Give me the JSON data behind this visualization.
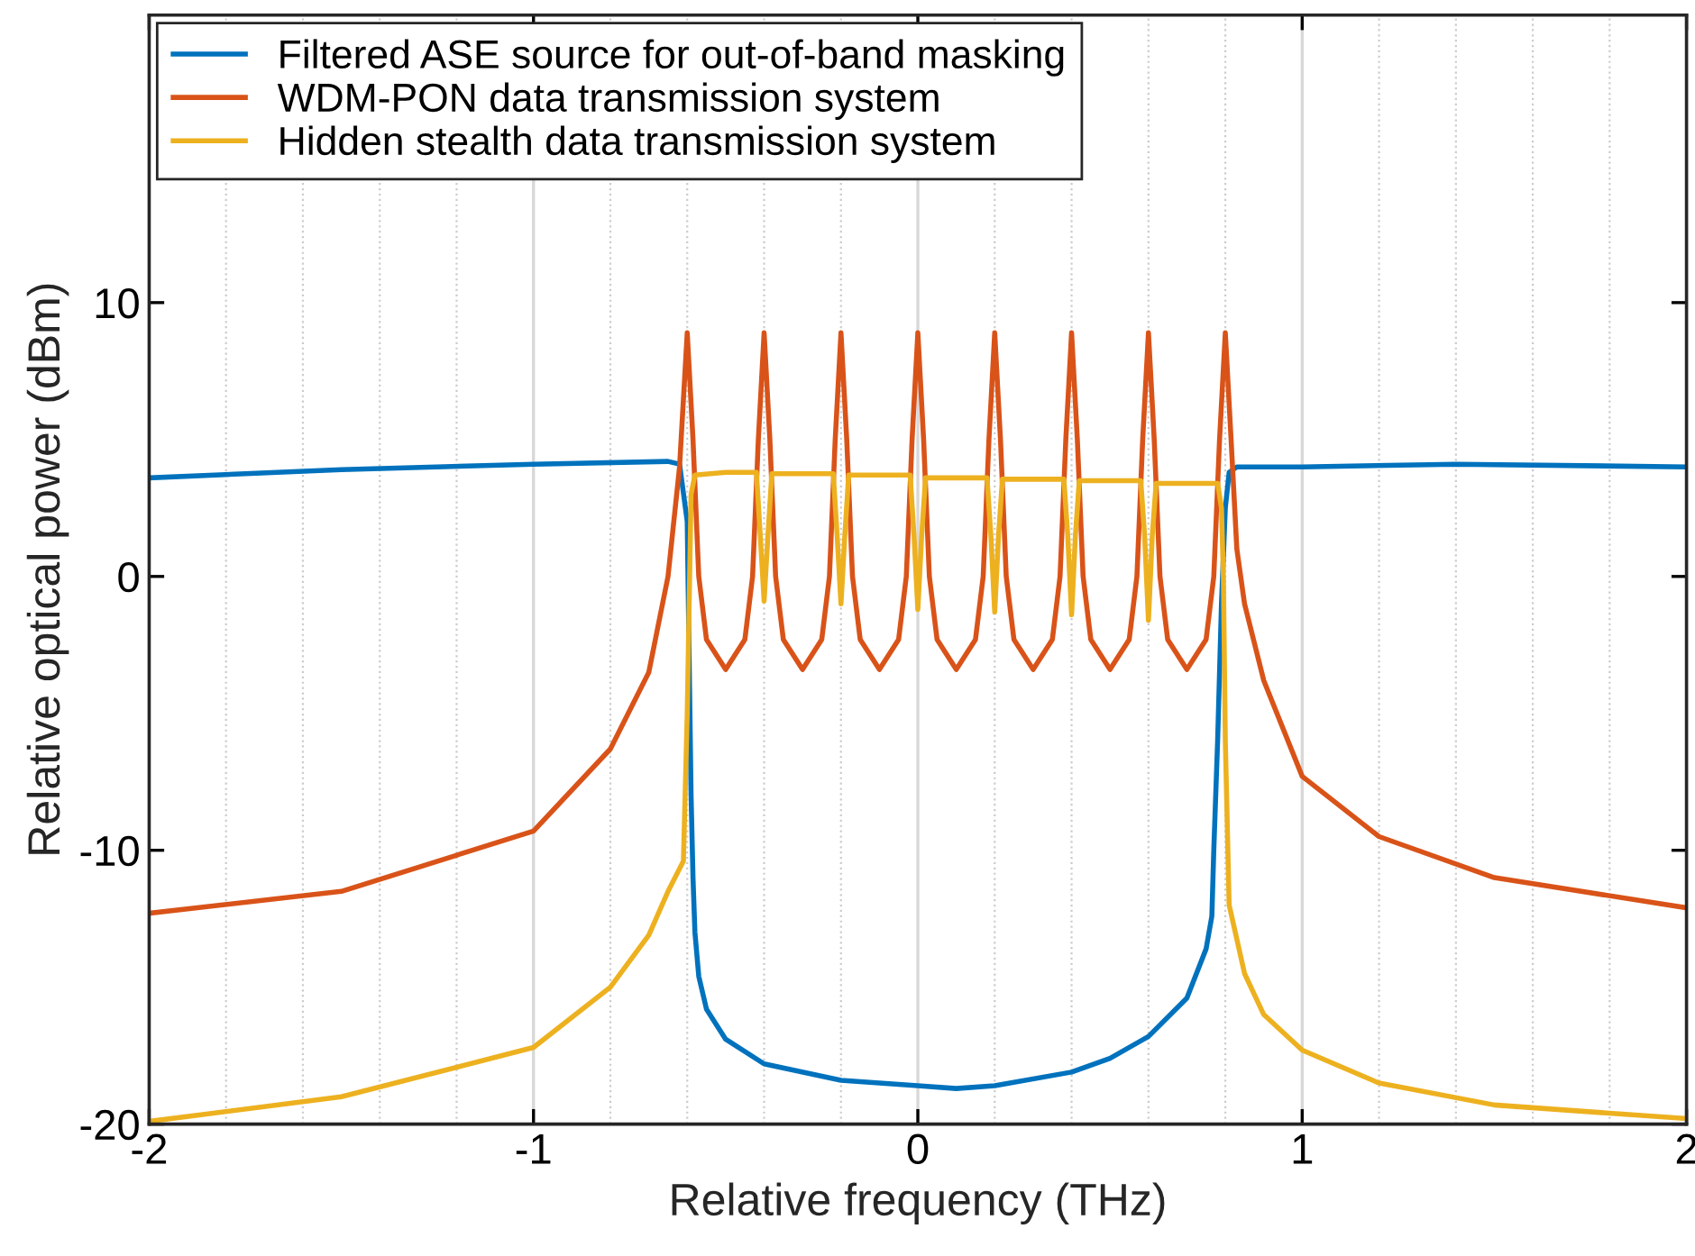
{
  "chart_data": {
    "type": "line",
    "xlabel": "Relative frequency (THz)",
    "ylabel": "Relative optical power (dBm)",
    "xlim": [
      -2,
      2
    ],
    "ylim": [
      -20,
      20.5
    ],
    "xticks": [
      -2,
      -1,
      0,
      1,
      2
    ],
    "yticks": [
      -20,
      -10,
      0,
      10
    ],
    "grid": "x",
    "legend": "top left",
    "line_style": "solid",
    "marker": "none",
    "series": [
      {
        "name": "Filtered ASE source for out-of-band masking",
        "color": "#0072bd",
        "x": [
          -2,
          -1.5,
          -1,
          -0.65,
          -0.62,
          -0.6,
          -0.595,
          -0.59,
          -0.585,
          -0.58,
          -0.57,
          -0.55,
          -0.5,
          -0.4,
          -0.2,
          0,
          0.1,
          0.2,
          0.4,
          0.5,
          0.6,
          0.7,
          0.75,
          0.765,
          0.77,
          0.78,
          0.79,
          0.8,
          0.81,
          0.83,
          1,
          1.4,
          2
        ],
        "values": [
          3.6,
          3.9,
          4.1,
          4.2,
          4.1,
          2,
          -3,
          -8,
          -11,
          -13,
          -14.6,
          -15.8,
          -16.9,
          -17.8,
          -18.4,
          -18.6,
          -18.7,
          -18.6,
          -18.1,
          -17.6,
          -16.8,
          -15.4,
          -13.6,
          -12.4,
          -10,
          -6,
          -1,
          2.5,
          3.8,
          4.0,
          4.0,
          4.1,
          4.0
        ]
      },
      {
        "name": "WDM-PON data transmission system",
        "color": "#d95319",
        "x": [
          -2,
          -1.5,
          -1,
          -0.8,
          -0.7,
          -0.65,
          -0.62,
          -0.6,
          -0.585,
          -0.57,
          -0.55,
          -0.5,
          -0.45,
          -0.43,
          -0.415,
          -0.4,
          -0.385,
          -0.37,
          -0.35,
          -0.3,
          -0.25,
          -0.23,
          -0.215,
          -0.2,
          -0.185,
          -0.17,
          -0.15,
          -0.1,
          -0.05,
          -0.03,
          -0.015,
          0,
          0.015,
          0.03,
          0.05,
          0.1,
          0.15,
          0.17,
          0.185,
          0.2,
          0.215,
          0.23,
          0.25,
          0.3,
          0.35,
          0.37,
          0.385,
          0.4,
          0.415,
          0.43,
          0.45,
          0.5,
          0.55,
          0.57,
          0.585,
          0.6,
          0.615,
          0.63,
          0.65,
          0.7,
          0.75,
          0.77,
          0.785,
          0.8,
          0.815,
          0.83,
          0.85,
          0.9,
          1,
          1.2,
          1.5,
          2
        ],
        "values": [
          -12.3,
          -11.5,
          -9.3,
          -6.3,
          -3.5,
          0,
          4,
          8.9,
          5,
          0,
          -2.3,
          -3.4,
          -2.3,
          0,
          5,
          8.9,
          5,
          0,
          -2.3,
          -3.4,
          -2.3,
          0,
          5,
          8.9,
          5,
          0,
          -2.3,
          -3.4,
          -2.3,
          0,
          5,
          8.9,
          5,
          0,
          -2.3,
          -3.4,
          -2.3,
          0,
          5,
          8.9,
          5,
          0,
          -2.3,
          -3.4,
          -2.3,
          0,
          5,
          8.9,
          5,
          0,
          -2.3,
          -3.4,
          -2.3,
          0,
          5,
          8.9,
          5,
          0,
          -2.3,
          -3.4,
          -2.3,
          0,
          5,
          8.9,
          5,
          1,
          -1,
          -3.8,
          -7.3,
          -9.5,
          -11,
          -12.1
        ]
      },
      {
        "name": "Hidden stealth data transmission system",
        "color": "#edb120",
        "x": [
          -2,
          -1.5,
          -1,
          -0.8,
          -0.7,
          -0.65,
          -0.61,
          -0.6,
          -0.59,
          -0.58,
          -0.5,
          -0.42,
          -0.41,
          -0.4,
          -0.39,
          -0.38,
          -0.3,
          -0.22,
          -0.21,
          -0.2,
          -0.19,
          -0.18,
          -0.1,
          -0.02,
          -0.01,
          0,
          0.01,
          0.02,
          0.1,
          0.18,
          0.19,
          0.2,
          0.21,
          0.22,
          0.3,
          0.38,
          0.39,
          0.4,
          0.41,
          0.42,
          0.5,
          0.58,
          0.59,
          0.6,
          0.61,
          0.62,
          0.7,
          0.78,
          0.79,
          0.795,
          0.8,
          0.81,
          0.85,
          0.9,
          1,
          1.2,
          1.5,
          2
        ],
        "values": [
          -19.9,
          -19.0,
          -17.2,
          -15.0,
          -13.1,
          -11.5,
          -10.4,
          -5,
          3.0,
          3.7,
          3.8,
          3.8,
          1.5,
          -0.9,
          1.5,
          3.75,
          3.75,
          3.75,
          1.5,
          -1.0,
          1.5,
          3.7,
          3.7,
          3.7,
          1.5,
          -1.2,
          1.5,
          3.6,
          3.6,
          3.6,
          1.5,
          -1.3,
          1.5,
          3.55,
          3.55,
          3.55,
          1.5,
          -1.4,
          1.5,
          3.5,
          3.5,
          3.5,
          1.5,
          -1.6,
          1.5,
          3.4,
          3.4,
          3.4,
          2.5,
          0,
          -6,
          -12,
          -14.5,
          -16,
          -17.3,
          -18.5,
          -19.3,
          -19.8
        ]
      }
    ]
  }
}
